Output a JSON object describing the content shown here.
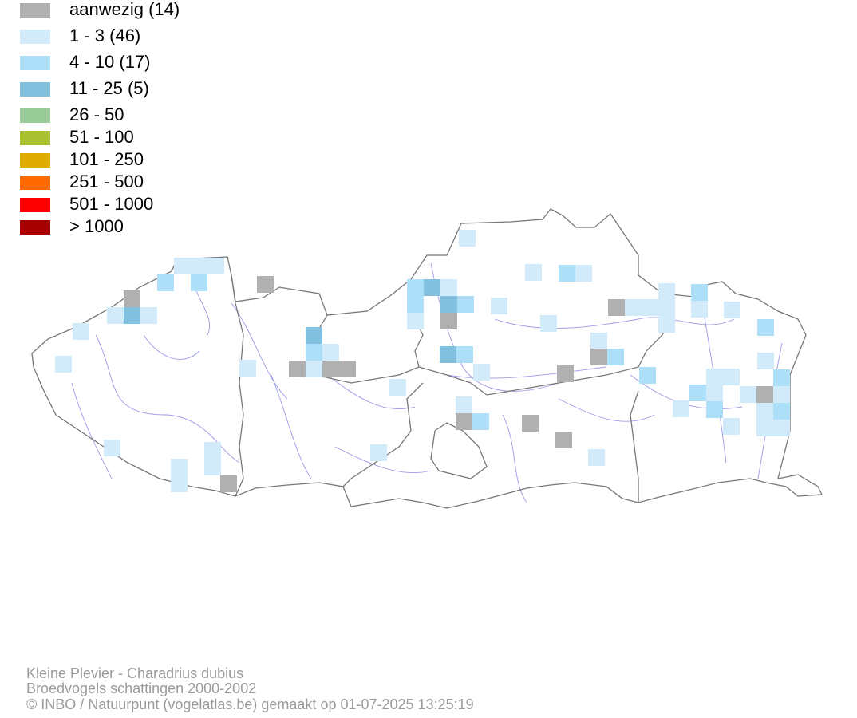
{
  "legend": [
    {
      "label": "aanwezig (14)",
      "color": "#b0b0b0"
    },
    {
      "label": "1 - 3 (46)",
      "color": "#d2ebfa"
    },
    {
      "label": "4 - 10 (17)",
      "color": "#addff8"
    },
    {
      "label": "11 - 25 (5)",
      "color": "#82c0e0"
    },
    {
      "label": "26 - 50",
      "color": "#99cc99"
    },
    {
      "label": "51 - 100",
      "color": "#aac232"
    },
    {
      "label": "101 - 250",
      "color": "#e0ac00"
    },
    {
      "label": "251 - 500",
      "color": "#ff6a00"
    },
    {
      "label": "501 - 1000",
      "color": "#ff0000"
    },
    {
      "label": "> 1000",
      "color": "#a60000"
    }
  ],
  "footer": {
    "species": "Kleine Plevier - Charadrius dubius",
    "subtitle": "Broedvogels schattingen 2000-2002",
    "credit": "© INBO / Natuurpunt (vogelatlas.be) gemaakt op 01-07-2025 13:25:19"
  }
}
